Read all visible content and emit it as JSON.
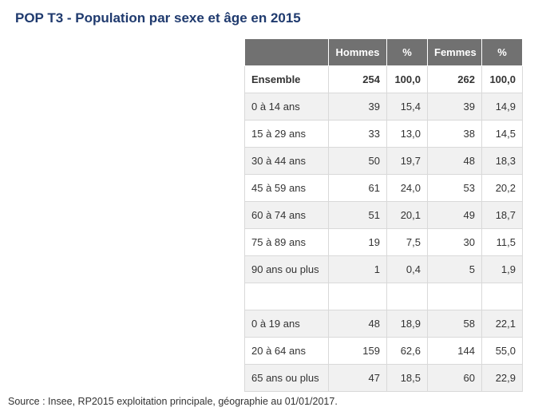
{
  "title": "POP T3 - Population par sexe et âge en 2015",
  "table": {
    "headers": [
      "",
      "Hommes",
      "%",
      "Femmes",
      "%"
    ],
    "rows": [
      {
        "label": "Ensemble",
        "hommes": "254",
        "pct_h": "100,0",
        "femmes": "262",
        "pct_f": "100,0"
      },
      {
        "label": "0 à 14 ans",
        "hommes": "39",
        "pct_h": "15,4",
        "femmes": "39",
        "pct_f": "14,9"
      },
      {
        "label": "15 à 29 ans",
        "hommes": "33",
        "pct_h": "13,0",
        "femmes": "38",
        "pct_f": "14,5"
      },
      {
        "label": "30 à 44 ans",
        "hommes": "50",
        "pct_h": "19,7",
        "femmes": "48",
        "pct_f": "18,3"
      },
      {
        "label": "45 à 59 ans",
        "hommes": "61",
        "pct_h": "24,0",
        "femmes": "53",
        "pct_f": "20,2"
      },
      {
        "label": "60 à 74 ans",
        "hommes": "51",
        "pct_h": "20,1",
        "femmes": "49",
        "pct_f": "18,7"
      },
      {
        "label": "75 à 89 ans",
        "hommes": "19",
        "pct_h": "7,5",
        "femmes": "30",
        "pct_f": "11,5"
      },
      {
        "label": "90 ans ou plus",
        "hommes": "1",
        "pct_h": "0,4",
        "femmes": "5",
        "pct_f": "1,9"
      },
      {
        "label": "",
        "hommes": "",
        "pct_h": "",
        "femmes": "",
        "pct_f": ""
      },
      {
        "label": "0 à 19 ans",
        "hommes": "48",
        "pct_h": "18,9",
        "femmes": "58",
        "pct_f": "22,1"
      },
      {
        "label": "20 à 64 ans",
        "hommes": "159",
        "pct_h": "62,6",
        "femmes": "144",
        "pct_f": "55,0"
      },
      {
        "label": "65 ans ou plus",
        "hommes": "47",
        "pct_h": "18,5",
        "femmes": "60",
        "pct_f": "22,9"
      }
    ]
  },
  "source": "Source : Insee, RP2015 exploitation principale, géographie au 01/01/2017.",
  "colors": {
    "title": "#1f3a6e",
    "header_bg": "#717171",
    "header_text": "#ffffff",
    "row_shade": "#f1f1f1",
    "border": "#d9d9d9"
  }
}
